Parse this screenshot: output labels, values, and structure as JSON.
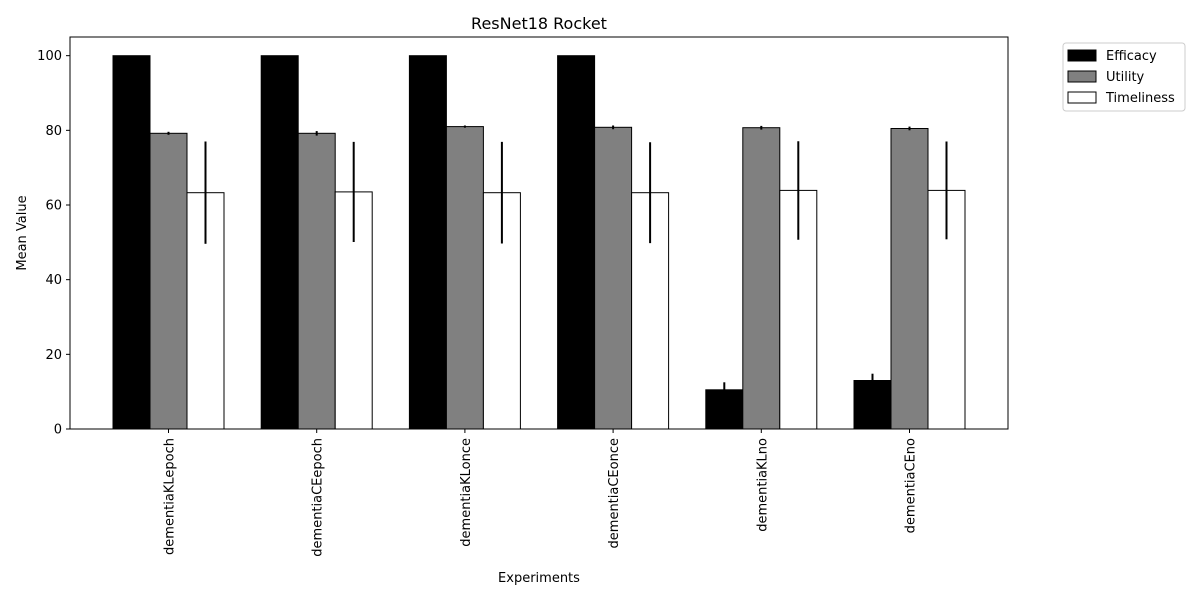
{
  "chart_data": {
    "type": "bar",
    "title": "ResNet18 Rocket",
    "xlabel": "Experiments",
    "ylabel": "Mean Value",
    "ylim": [
      0,
      105
    ],
    "yticks": [
      0,
      20,
      40,
      60,
      80,
      100
    ],
    "categories": [
      "dementiaKLepoch",
      "dementiaCEepoch",
      "dementiaKLonce",
      "dementiaCEonce",
      "dementiaKLno",
      "dementiaCEno"
    ],
    "series": [
      {
        "name": "Efficacy",
        "color": "#000000",
        "values": [
          100,
          100,
          100,
          100,
          10.5,
          13.0
        ],
        "errors": [
          0,
          0,
          0,
          0,
          2.0,
          1.8
        ]
      },
      {
        "name": "Utility",
        "color": "#808080",
        "values": [
          79.2,
          79.2,
          81.0,
          80.8,
          80.7,
          80.5
        ],
        "errors": [
          0.4,
          0.6,
          0.3,
          0.5,
          0.5,
          0.5
        ]
      },
      {
        "name": "Timeliness",
        "color": "#ffffff",
        "values": [
          63.3,
          63.5,
          63.3,
          63.3,
          63.9,
          63.9
        ],
        "errors": [
          13.7,
          13.4,
          13.6,
          13.5,
          13.2,
          13.1
        ]
      }
    ],
    "legend_position": "outside-top-right",
    "grid": false
  }
}
